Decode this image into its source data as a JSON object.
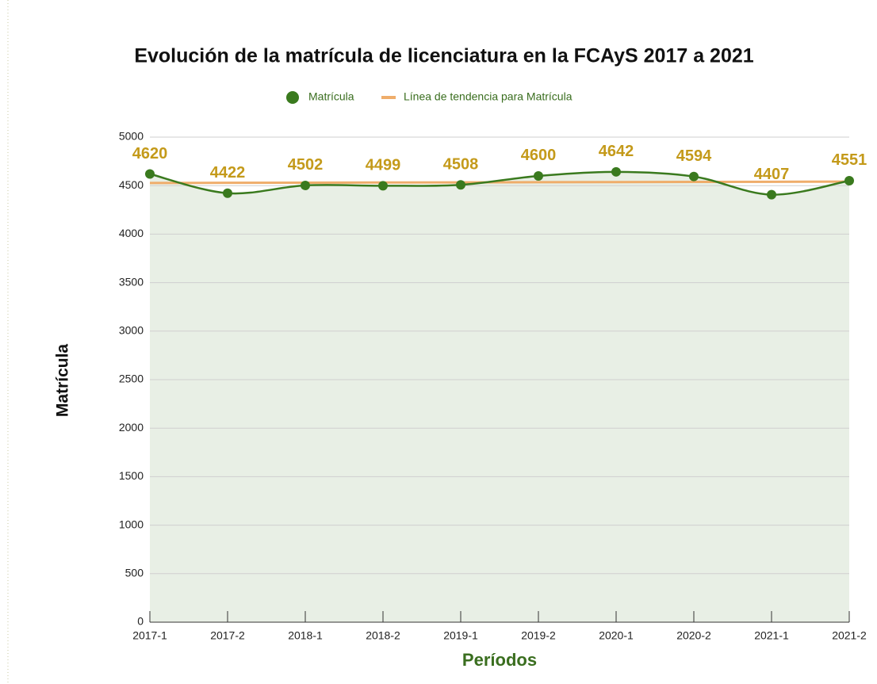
{
  "chart_data": {
    "type": "line",
    "title": "Evolución de la matrícula de licenciatura en la FCAyS 2017 a 2021",
    "x_label": "Períodos",
    "y_label": "Matrícula",
    "categories": [
      "2017-1",
      "2017-2",
      "2018-1",
      "2018-2",
      "2019-1",
      "2019-2",
      "2020-1",
      "2020-2",
      "2021-1",
      "2021-2"
    ],
    "series": [
      {
        "name": "Matrícula",
        "color": "#3a7a1e",
        "values": [
          4620,
          4422,
          4502,
          4499,
          4508,
          4600,
          4642,
          4594,
          4407,
          4551
        ]
      },
      {
        "name": "Línea de tendencia para Matrícula",
        "color": "#efad6b",
        "values": [
          4527.5,
          4529.0,
          4530.6,
          4532.1,
          4533.7,
          4535.3,
          4536.8,
          4538.4,
          4539.9,
          4541.5
        ]
      }
    ],
    "ylim": [
      0,
      5000
    ],
    "yticks": [
      0,
      500,
      1000,
      1500,
      2000,
      2500,
      3000,
      3500,
      4000,
      4500,
      5000
    ],
    "grid": true,
    "legend": "top",
    "area_fill": "#e8efe5",
    "value_label_color": "#c49a1a"
  }
}
